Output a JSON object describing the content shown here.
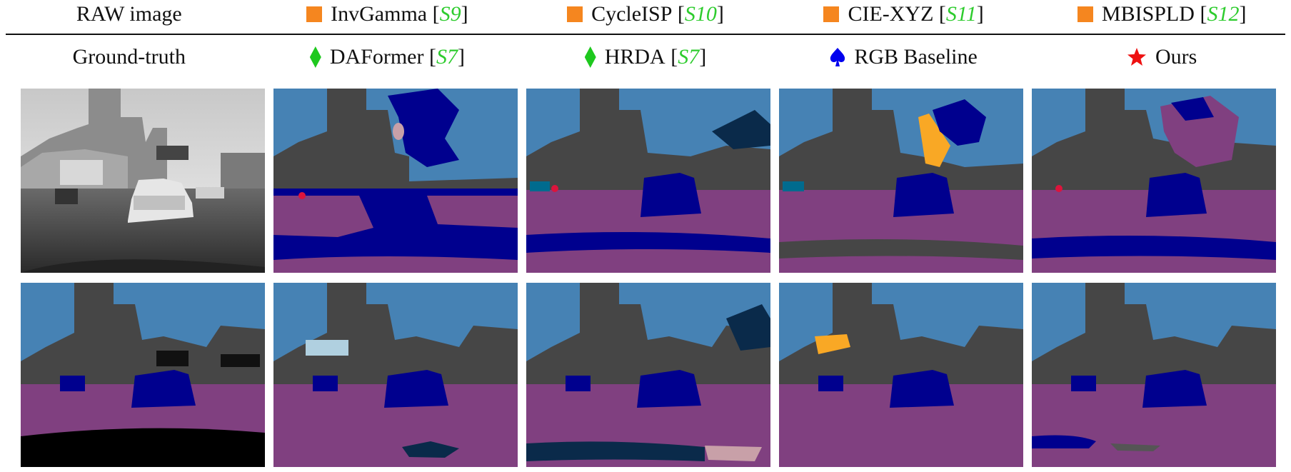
{
  "header_row_1": [
    {
      "label": "RAW image",
      "cite": "",
      "marker": "none"
    },
    {
      "label": "InvGamma",
      "cite": "S9",
      "marker": "orange-square"
    },
    {
      "label": "CycleISP",
      "cite": "S10",
      "marker": "orange-square"
    },
    {
      "label": "CIE-XYZ",
      "cite": "S11",
      "marker": "orange-square"
    },
    {
      "label": "MBISPLD",
      "cite": "S12",
      "marker": "orange-square"
    }
  ],
  "header_row_2": [
    {
      "label": "Ground-truth",
      "cite": "",
      "marker": "none"
    },
    {
      "label": "DAFormer",
      "cite": "S7",
      "marker": "green-diamond"
    },
    {
      "label": "HRDA",
      "cite": "S7",
      "marker": "green-diamond"
    },
    {
      "label": "RGB Baseline",
      "cite": "",
      "marker": "blue-spade"
    },
    {
      "label": "Ours",
      "cite": "",
      "marker": "red-star"
    }
  ],
  "colors": {
    "sky": "#4682b4",
    "building": "#464646",
    "road": "#804080",
    "car": "#00008e",
    "vegetation": "#006b8e",
    "sidewalk": "#f4a23a",
    "sign": "#f9b214",
    "marker_orange": "#f5861f",
    "marker_green": "#1ec81e",
    "marker_blue": "#0000ee",
    "marker_red": "#ee1111",
    "cite_green": "#2ecc2e"
  }
}
